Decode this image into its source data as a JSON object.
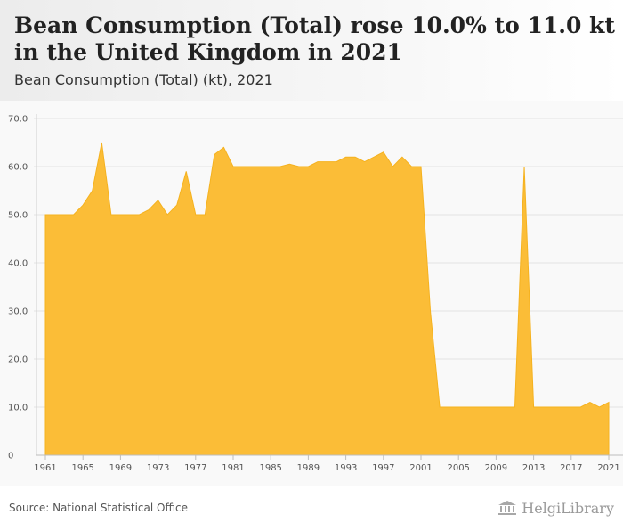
{
  "title": "Bean Consumption (Total) rose 10.0% to 11.0 kt in the United Kingdom in 2021",
  "subtitle": "Bean Consumption (Total) (kt), 2021",
  "source": "Source: National Statistical Office",
  "logo_text": "HelgiLibrary",
  "colors": {
    "fill": "#fbbd37",
    "stroke": "#f5b21f",
    "grid": "#e3e3e3"
  },
  "chart_data": {
    "type": "area",
    "title": "Bean Consumption (Total) rose 10.0% to 11.0 kt in the United Kingdom in 2021",
    "ylabel": "kt",
    "ylim": [
      0,
      70
    ],
    "y_ticks": [
      "70.0",
      "60.0",
      "50.0",
      "40.0",
      "30.0",
      "20.0",
      "10.0",
      "0"
    ],
    "y_tick_values": [
      70,
      60,
      50,
      40,
      30,
      20,
      10,
      0
    ],
    "x_ticks": [
      1961,
      1965,
      1969,
      1973,
      1977,
      1981,
      1985,
      1989,
      1993,
      1997,
      2001,
      2005,
      2009,
      2013,
      2017,
      2021
    ],
    "x": [
      1961,
      1962,
      1963,
      1964,
      1965,
      1966,
      1967,
      1968,
      1969,
      1970,
      1971,
      1972,
      1973,
      1974,
      1975,
      1976,
      1977,
      1978,
      1979,
      1980,
      1981,
      1982,
      1983,
      1984,
      1985,
      1986,
      1987,
      1988,
      1989,
      1990,
      1991,
      1992,
      1993,
      1994,
      1995,
      1996,
      1997,
      1998,
      1999,
      2000,
      2001,
      2002,
      2003,
      2004,
      2005,
      2006,
      2007,
      2008,
      2009,
      2010,
      2011,
      2012,
      2013,
      2014,
      2015,
      2016,
      2017,
      2018,
      2019,
      2020,
      2021
    ],
    "values": [
      50,
      50,
      50,
      50,
      52,
      55,
      65,
      50,
      50,
      50,
      50,
      51,
      53,
      50,
      52,
      59,
      50,
      50,
      62.5,
      64,
      60,
      60,
      60,
      60,
      60,
      60,
      60.5,
      60,
      60,
      61,
      61,
      61,
      62,
      62,
      61,
      62,
      63,
      60,
      62,
      60,
      60,
      30,
      10,
      10,
      10,
      10,
      10,
      10,
      10,
      10,
      10,
      60,
      10,
      10,
      10,
      10,
      10,
      10,
      11,
      10,
      11
    ]
  }
}
